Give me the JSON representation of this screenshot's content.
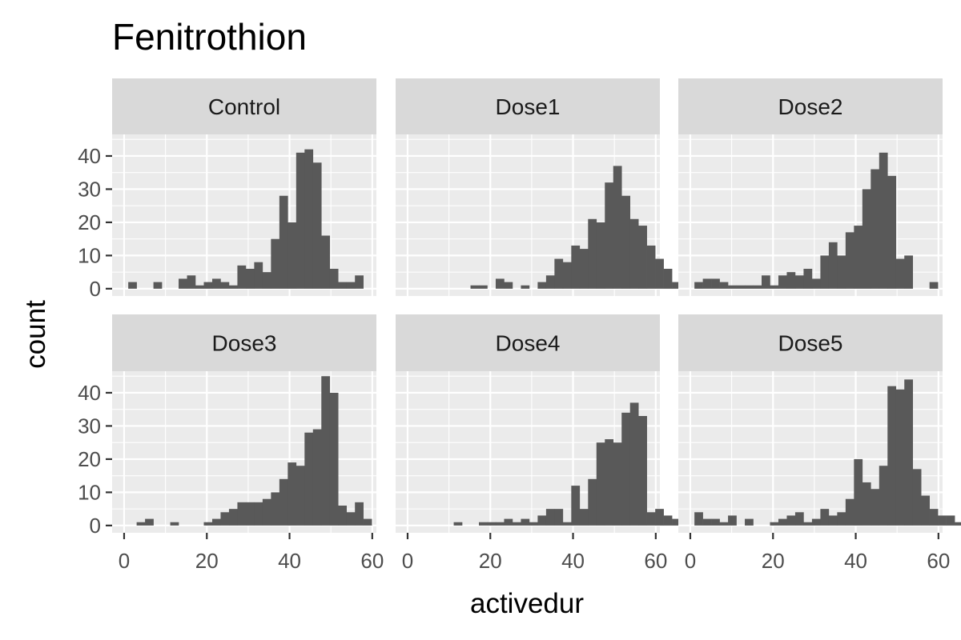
{
  "chart_data": {
    "type": "bar",
    "title": "Fenitrothion",
    "xlabel": "activedur",
    "ylabel": "count",
    "xlim": [
      -2.9,
      61.0
    ],
    "ylim": [
      -2.2,
      46.5
    ],
    "x_ticks": [
      0,
      20,
      40,
      60
    ],
    "y_ticks": [
      0,
      10,
      20,
      30,
      40
    ],
    "bin_width": 2.03,
    "x_start": 1.0,
    "grid": true,
    "panels": [
      {
        "name": "Control",
        "counts": [
          2,
          0,
          0,
          2,
          0,
          0,
          3,
          4,
          1,
          2,
          3,
          2,
          1,
          7,
          6,
          8,
          5,
          15,
          28,
          20,
          41,
          42,
          38,
          16,
          6,
          2,
          2,
          4
        ]
      },
      {
        "name": "Dose1",
        "counts": [
          0,
          0,
          0,
          0,
          0,
          0,
          0,
          1,
          1,
          0,
          3,
          2,
          0,
          1,
          0,
          2,
          4,
          9,
          8,
          13,
          12,
          21,
          20,
          32,
          37,
          28,
          21,
          19,
          13,
          9,
          6,
          2
        ]
      },
      {
        "name": "Dose2",
        "counts": [
          2,
          3,
          3,
          2,
          1,
          1,
          1,
          1,
          4,
          1,
          4,
          5,
          4,
          6,
          3,
          10,
          14,
          10,
          17,
          19,
          30,
          36,
          41,
          34,
          9,
          10,
          0,
          0,
          2
        ]
      },
      {
        "name": "Dose3",
        "counts": [
          0,
          1,
          2,
          0,
          0,
          1,
          0,
          0,
          0,
          1,
          2,
          4,
          5,
          7,
          7,
          7,
          8,
          10,
          14,
          19,
          18,
          28,
          29,
          45,
          40,
          6,
          4,
          7,
          2
        ]
      },
      {
        "name": "Dose4",
        "counts": [
          0,
          0,
          0,
          0,
          0,
          1,
          0,
          0,
          1,
          1,
          1,
          2,
          1,
          2,
          1,
          3,
          5,
          5,
          1,
          12,
          5,
          14,
          25,
          26,
          25,
          34,
          37,
          33,
          4,
          5,
          3,
          2
        ]
      },
      {
        "name": "Dose5",
        "counts": [
          4,
          2,
          2,
          1,
          3,
          0,
          2,
          0,
          0,
          1,
          2,
          3,
          4,
          1,
          2,
          5,
          3,
          4,
          8,
          20,
          13,
          11,
          18,
          42,
          41,
          44,
          17,
          9,
          5,
          3,
          3,
          1
        ]
      }
    ]
  }
}
